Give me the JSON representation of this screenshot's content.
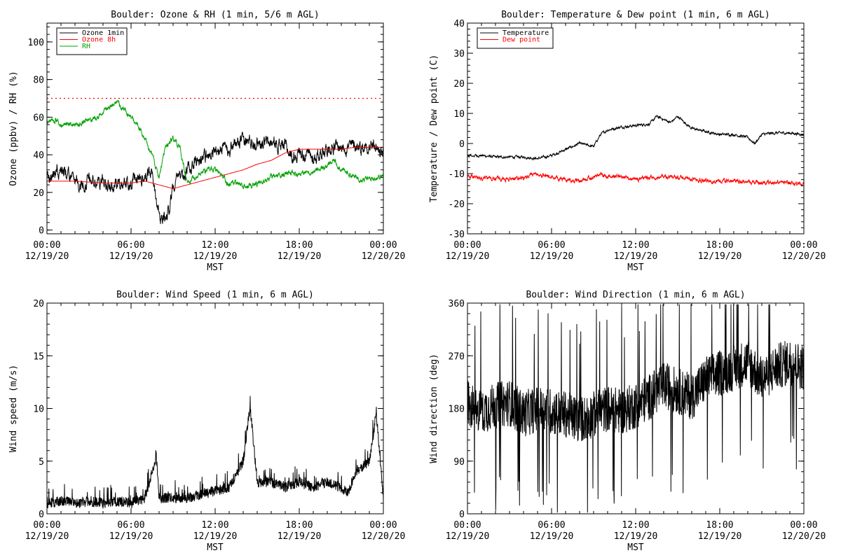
{
  "panels": [
    {
      "id": "ozone",
      "title": "Boulder: Ozone & RH (1 min, 5/6 m AGL)",
      "ylabel": "Ozone (ppbv) / RH (%)",
      "xlabel": "MST",
      "ylim": [
        -2,
        110
      ],
      "yticks": [
        0,
        20,
        40,
        60,
        80,
        100
      ],
      "legend": [
        "Ozone 1min",
        "Ozone 8h",
        "RH"
      ]
    },
    {
      "id": "temp",
      "title": "Boulder: Temperature & Dew point (1 min, 6 m AGL)",
      "ylabel": "Temperature / Dew point (C)",
      "xlabel": "MST",
      "ylim": [
        -30,
        40
      ],
      "yticks": [
        -30,
        -20,
        -10,
        0,
        10,
        20,
        30,
        40
      ],
      "legend": [
        "Temperature",
        "Dew point"
      ]
    },
    {
      "id": "wspd",
      "title": "Boulder: Wind Speed (1 min, 6 m AGL)",
      "ylabel": "Wind speed (m/s)",
      "xlabel": "MST",
      "ylim": [
        0,
        20
      ],
      "yticks": [
        0,
        5,
        10,
        15,
        20
      ],
      "legend": []
    },
    {
      "id": "wdir",
      "title": "Boulder: Wind Direction (1 min, 6 m AGL)",
      "ylabel": "Wind direction (deg)",
      "xlabel": "MST",
      "ylim": [
        0,
        360
      ],
      "yticks": [
        0,
        90,
        180,
        270,
        360
      ],
      "legend": []
    }
  ],
  "x_ticks": [
    {
      "time": "00:00",
      "date": "12/19/20"
    },
    {
      "time": "06:00",
      "date": "12/19/20"
    },
    {
      "time": "12:00",
      "date": "12/19/20"
    },
    {
      "time": "18:00",
      "date": "12/19/20"
    },
    {
      "time": "00:00",
      "date": "12/20/20"
    }
  ],
  "colors": {
    "black": "#000000",
    "red": "#ff0000",
    "green": "#00a000"
  },
  "chart_data": [
    {
      "type": "line",
      "title": "Boulder: Ozone & RH (1 min, 5/6 m AGL)",
      "xlabel": "MST",
      "ylabel": "Ozone (ppbv) / RH (%)",
      "x_unit": "hours since 12/19/20 00:00 MST",
      "xlim": [
        0,
        24
      ],
      "ylim": [
        -2,
        110
      ],
      "reference_line": {
        "y": 70,
        "color": "#ff0000",
        "style": "dotted"
      },
      "series": [
        {
          "name": "Ozone 1min",
          "color": "#000000",
          "noise": 2.5,
          "x": [
            0,
            0.5,
            1,
            1.5,
            2,
            2.5,
            3,
            3.5,
            4,
            4.5,
            5,
            5.5,
            6,
            6.5,
            7,
            7.5,
            7.8,
            8,
            8.3,
            8.6,
            9,
            9.3,
            9.6,
            10,
            10.5,
            11,
            11.5,
            12,
            12.5,
            13,
            13.5,
            14,
            15,
            16,
            17,
            17.5,
            18,
            19,
            20,
            21,
            22,
            22.5,
            23,
            23.5,
            24
          ],
          "y": [
            27,
            30,
            32,
            29,
            26,
            24,
            27,
            25,
            27,
            23,
            24,
            25,
            25,
            27,
            28,
            30,
            18,
            10,
            5,
            8,
            22,
            33,
            27,
            32,
            36,
            38,
            40,
            40,
            42,
            44,
            46,
            47,
            47,
            46,
            45,
            38,
            42,
            38,
            44,
            44,
            45,
            44,
            45,
            44,
            40
          ]
        },
        {
          "name": "Ozone 8h",
          "color": "#ff0000",
          "noise": 0,
          "x": [
            0,
            2,
            4,
            6,
            7,
            8,
            9,
            10,
            11,
            12,
            13,
            14,
            15,
            16,
            17,
            18,
            19,
            20,
            21,
            22,
            23,
            24
          ],
          "y": [
            26,
            26,
            25,
            25,
            26,
            24,
            22,
            24,
            26,
            28,
            30,
            32,
            35,
            37,
            41,
            43,
            43,
            43,
            43,
            44,
            44,
            44
          ]
        },
        {
          "name": "RH",
          "color": "#00a000",
          "noise": 1.0,
          "x": [
            0,
            0.5,
            1,
            1.5,
            2,
            3,
            4,
            4.5,
            5,
            5.5,
            6,
            6.5,
            7,
            7.5,
            8,
            8.5,
            9,
            9.5,
            10,
            11,
            11.5,
            12,
            12.5,
            13,
            13.5,
            14,
            15,
            16,
            17,
            18,
            19,
            20,
            20.5,
            21,
            21.5,
            22,
            23,
            24
          ],
          "y": [
            58,
            59,
            56,
            57,
            56,
            58,
            62,
            66,
            68,
            64,
            60,
            55,
            48,
            40,
            28,
            45,
            49,
            43,
            25,
            30,
            33,
            32,
            28,
            24,
            25,
            23,
            24,
            28,
            30,
            30,
            31,
            34,
            37,
            32,
            30,
            28,
            27,
            29
          ]
        }
      ]
    },
    {
      "type": "line",
      "title": "Boulder: Temperature & Dew point (1 min, 6 m AGL)",
      "xlabel": "MST",
      "ylabel": "Temperature / Dew point (C)",
      "x_unit": "hours since 12/19/20 00:00 MST",
      "xlim": [
        0,
        24
      ],
      "ylim": [
        -30,
        40
      ],
      "series": [
        {
          "name": "Temperature",
          "color": "#000000",
          "noise": 0.3,
          "x": [
            0,
            1,
            2,
            3,
            4,
            5,
            6,
            7,
            8,
            9,
            9.5,
            10,
            11,
            12,
            13,
            13.5,
            14,
            14.5,
            15,
            15.5,
            16,
            17,
            18,
            19,
            20,
            20.5,
            21,
            22,
            23,
            24
          ],
          "y": [
            -4,
            -4,
            -4.5,
            -4.5,
            -4.5,
            -5,
            -4,
            -2,
            0,
            -1,
            3,
            4.5,
            5.5,
            6,
            6.5,
            9,
            8,
            7,
            9,
            7,
            5,
            4,
            3,
            3,
            2,
            0,
            3,
            3.5,
            3.5,
            3
          ]
        },
        {
          "name": "Dew point",
          "color": "#ff0000",
          "noise": 0.5,
          "x": [
            0,
            1,
            2,
            3,
            4,
            5,
            6,
            7,
            8,
            9,
            9.5,
            10,
            11,
            12,
            13,
            14,
            15,
            16,
            17,
            18,
            19,
            20,
            21,
            22,
            23,
            24
          ],
          "y": [
            -11,
            -11.5,
            -11.5,
            -12,
            -11.5,
            -10,
            -11,
            -12,
            -12.5,
            -11,
            -10,
            -11,
            -11,
            -12,
            -11.5,
            -11,
            -11,
            -12,
            -12.5,
            -12.5,
            -12.5,
            -12.8,
            -13,
            -13,
            -13.2,
            -13.5
          ]
        }
      ]
    },
    {
      "type": "line",
      "title": "Boulder: Wind Speed (1 min, 6 m AGL)",
      "xlabel": "MST",
      "ylabel": "Wind speed (m/s)",
      "x_unit": "hours since 12/19/20 00:00 MST",
      "xlim": [
        0,
        24
      ],
      "ylim": [
        0,
        20
      ],
      "series": [
        {
          "name": "Wind speed",
          "color": "#000000",
          "noise": 1.0,
          "spiky": true,
          "x": [
            0,
            1,
            2,
            3,
            4,
            5,
            6,
            7,
            7.8,
            8,
            9,
            10,
            11,
            12,
            13,
            14,
            14.5,
            15,
            16,
            17,
            18,
            19,
            20,
            21,
            21.5,
            22,
            23,
            23.5,
            24
          ],
          "y": [
            1,
            1.2,
            1,
            1.2,
            1,
            1.2,
            1,
            1.5,
            5.5,
            1.5,
            1.5,
            1.5,
            1.8,
            2.2,
            2.5,
            5,
            10.2,
            3,
            3,
            2.5,
            3,
            2.5,
            3,
            2.5,
            2,
            4,
            5,
            9.5,
            1.5
          ]
        }
      ]
    },
    {
      "type": "line",
      "title": "Boulder: Wind Direction (1 min, 6 m AGL)",
      "xlabel": "MST",
      "ylabel": "Wind direction (deg)",
      "x_unit": "hours since 12/19/20 00:00 MST",
      "xlim": [
        0,
        24
      ],
      "ylim": [
        0,
        360
      ],
      "series": [
        {
          "name": "Wind direction",
          "color": "#000000",
          "noise": 40,
          "spiky": true,
          "x": [
            0,
            1,
            2,
            3,
            4,
            5,
            6,
            7,
            8,
            9,
            10,
            11,
            12,
            13,
            14,
            15,
            16,
            17,
            18,
            19,
            20,
            21,
            22,
            23,
            24
          ],
          "y": [
            190,
            175,
            185,
            190,
            170,
            180,
            175,
            170,
            160,
            170,
            180,
            175,
            185,
            200,
            220,
            210,
            200,
            230,
            240,
            250,
            260,
            230,
            250,
            260,
            250
          ]
        }
      ]
    }
  ]
}
